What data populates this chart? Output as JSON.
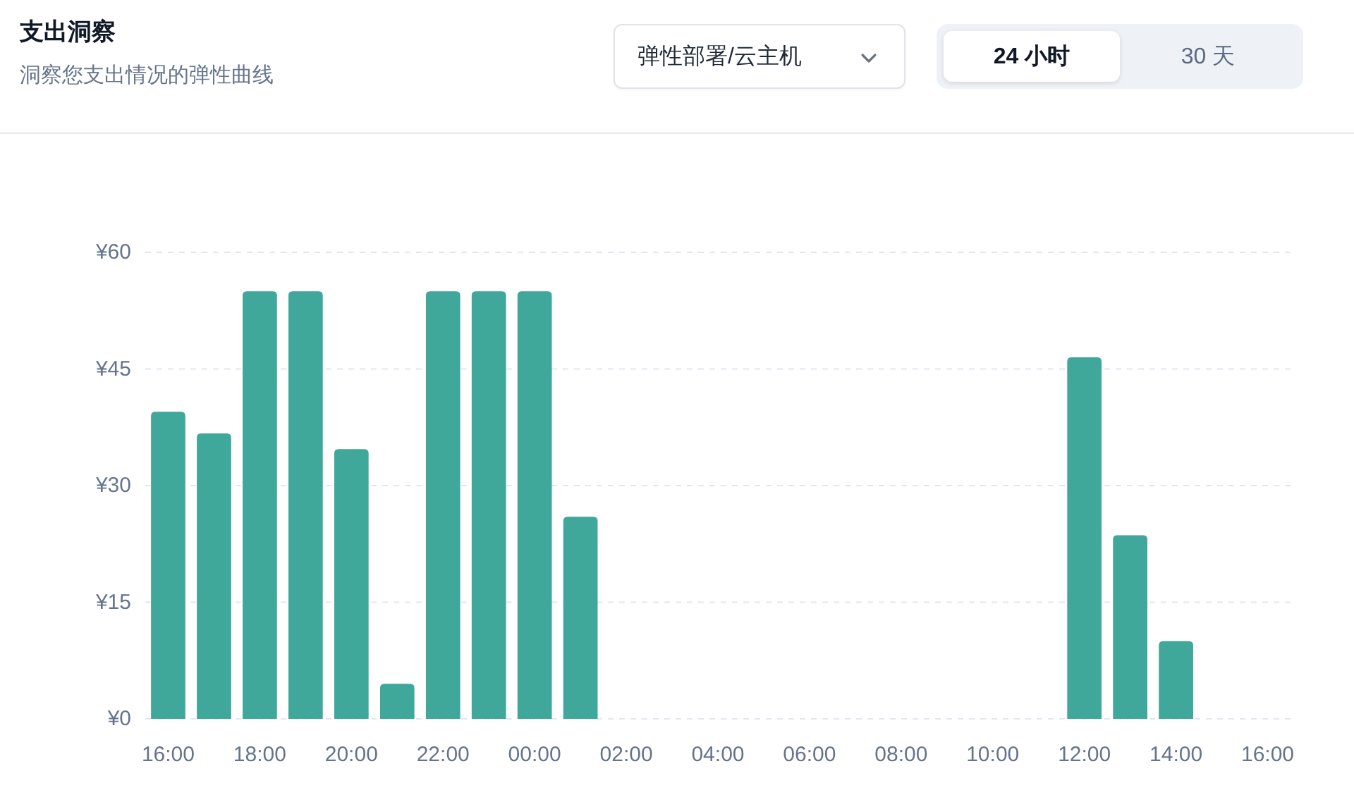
{
  "chart_data": {
    "type": "bar",
    "title": "支出洞察",
    "subtitle": "洞察您支出情况的弹性曲线",
    "annotations": [
      "弹性部署/云主机",
      "24 小时",
      "30 天"
    ],
    "categories": [
      "16:00",
      null,
      "18:00",
      null,
      "20:00",
      null,
      "22:00",
      null,
      "00:00",
      null,
      "02:00",
      null,
      "04:00",
      null,
      "06:00",
      null,
      "08:00",
      null,
      "10:00",
      null,
      "12:00",
      null,
      "14:00",
      null,
      "16:00"
    ],
    "values": [
      39.5,
      36.7,
      55,
      55,
      34.7,
      4.5,
      55,
      55,
      55,
      26,
      null,
      null,
      null,
      null,
      null,
      null,
      null,
      null,
      null,
      null,
      46.5,
      23.6,
      10,
      null,
      null
    ],
    "color": "#40a89b",
    "ylim": [
      0,
      60
    ],
    "yticks": [
      {
        "value": 0,
        "label": "¥0"
      },
      {
        "value": 15,
        "label": "¥15"
      },
      {
        "value": 30,
        "label": "¥30"
      },
      {
        "value": 45,
        "label": "¥45"
      },
      {
        "value": 60,
        "label": "¥60"
      }
    ],
    "grid": "y"
  }
}
